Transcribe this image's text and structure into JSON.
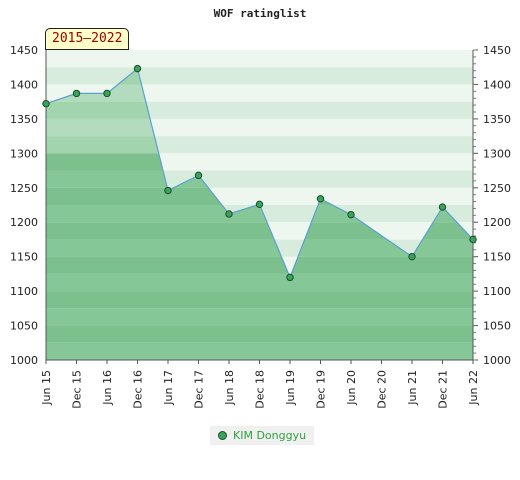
{
  "chart_data": {
    "type": "area",
    "title": "WOF ratinglist",
    "period": "2015–2022",
    "x": [
      "Jun 15",
      "Dec 15",
      "Jun 16",
      "Dec 16",
      "Jun 17",
      "Dec 17",
      "Jun 18",
      "Dec 18",
      "Jun 19",
      "Dec 19",
      "Jun 20",
      "Dec 20",
      "Jun 21",
      "Dec 21",
      "Jun 22"
    ],
    "y_ticks": [
      1000,
      1050,
      1100,
      1150,
      1200,
      1250,
      1300,
      1350,
      1400,
      1450
    ],
    "ylim": [
      1000,
      1450
    ],
    "grid": true,
    "legend_position": "bottom",
    "series": [
      {
        "name": "KIM Donggyu",
        "color": "#3aa35a",
        "points": [
          {
            "x": "Jun 15",
            "y": 1372
          },
          {
            "x": "Dec 15",
            "y": 1387
          },
          {
            "x": "Jun 16",
            "y": 1387
          },
          {
            "x": "Dec 16",
            "y": 1423
          },
          {
            "x": "Jun 17",
            "y": 1246
          },
          {
            "x": "Dec 17",
            "y": 1268
          },
          {
            "x": "Jun 18",
            "y": 1212
          },
          {
            "x": "Dec 18",
            "y": 1226
          },
          {
            "x": "Jun 19",
            "y": 1120
          },
          {
            "x": "Dec 19",
            "y": 1234
          },
          {
            "x": "Jun 20",
            "y": 1211
          },
          {
            "x": "Jun 21",
            "y": 1150
          },
          {
            "x": "Dec 21",
            "y": 1222
          },
          {
            "x": "Jun 22",
            "y": 1175
          }
        ]
      }
    ]
  }
}
